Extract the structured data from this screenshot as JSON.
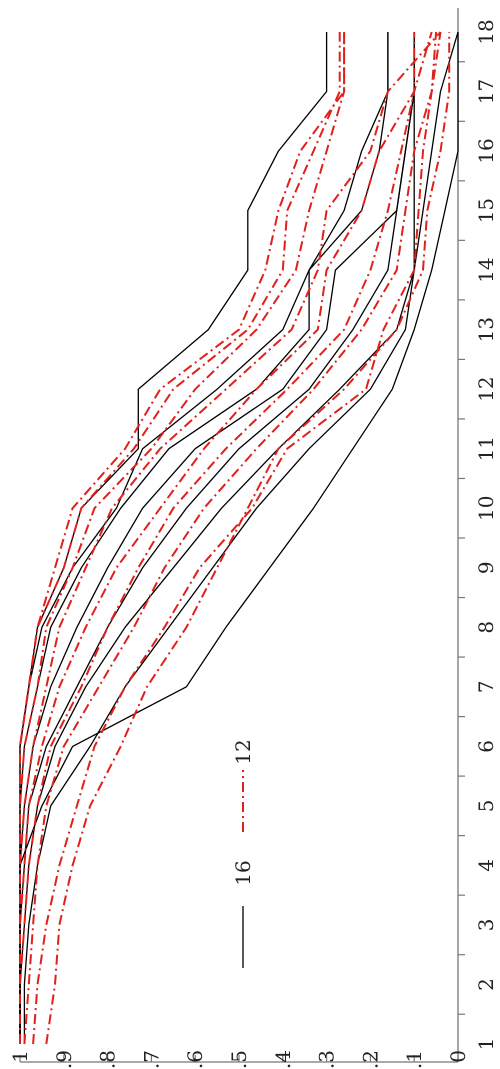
{
  "chart_data": {
    "type": "line",
    "orientation": "rotated-90-ccw",
    "x": [
      1,
      2,
      3,
      4,
      5,
      6,
      7,
      8,
      9,
      10,
      11,
      12,
      13,
      14,
      15,
      16,
      17,
      18
    ],
    "x_tick_labels": [
      "1",
      "2",
      "3",
      "4",
      "5",
      "6",
      "7",
      "8",
      "9",
      "10",
      "11",
      "12",
      "13",
      "14",
      "15",
      "16",
      "17",
      "18"
    ],
    "y_tick_labels": [
      "1",
      "0.9",
      "0.8",
      "0.7",
      "0.6",
      "0.5",
      "0.4",
      "0.3",
      "0.2",
      "0.1",
      "0"
    ],
    "ylim": [
      0,
      1
    ],
    "xlim": [
      1,
      18
    ],
    "legend": [
      {
        "label": "16",
        "style": "solid",
        "color": "#000000"
      },
      {
        "label": "12",
        "style": "dash-dot",
        "color": "#e0201b"
      }
    ],
    "series": [
      {
        "group": "16",
        "style": "solid",
        "color": "#000000",
        "values": [
          1.0,
          1.0,
          1.0,
          1.0,
          0.95,
          0.88,
          0.62,
          0.53,
          0.43,
          0.33,
          0.24,
          0.15,
          0.1,
          0.06,
          0.03,
          0.0,
          0.0,
          0.0
        ]
      },
      {
        "group": "16",
        "style": "solid",
        "color": "#000000",
        "values": [
          0.99,
          0.99,
          0.98,
          0.96,
          0.93,
          0.84,
          0.76,
          0.66,
          0.56,
          0.46,
          0.34,
          0.2,
          0.12,
          0.1,
          0.08,
          0.06,
          0.04,
          0.0
        ]
      },
      {
        "group": "16",
        "style": "solid",
        "color": "#000000",
        "values": [
          1.0,
          1.0,
          0.99,
          0.98,
          0.96,
          0.92,
          0.85,
          0.76,
          0.65,
          0.54,
          0.41,
          0.27,
          0.14,
          0.1,
          0.1,
          0.1,
          0.1,
          0.1
        ]
      },
      {
        "group": "16",
        "style": "solid",
        "color": "#000000",
        "values": [
          1.0,
          1.0,
          1.0,
          0.99,
          0.98,
          0.94,
          0.87,
          0.8,
          0.72,
          0.62,
          0.5,
          0.34,
          0.24,
          0.16,
          0.14,
          0.12,
          0.1,
          0.1
        ]
      },
      {
        "group": "16",
        "style": "solid",
        "color": "#000000",
        "values": [
          1.0,
          1.0,
          1.0,
          1.0,
          0.99,
          0.97,
          0.93,
          0.87,
          0.8,
          0.72,
          0.6,
          0.4,
          0.3,
          0.28,
          0.14,
          0.12,
          0.1,
          0.1
        ]
      },
      {
        "group": "16",
        "style": "solid",
        "color": "#000000",
        "values": [
          1.0,
          1.0,
          1.0,
          1.0,
          1.0,
          0.99,
          0.96,
          0.93,
          0.86,
          0.77,
          0.66,
          0.46,
          0.34,
          0.34,
          0.22,
          0.18,
          0.16,
          0.16
        ]
      },
      {
        "group": "16",
        "style": "solid",
        "color": "#000000",
        "values": [
          1.0,
          1.0,
          1.0,
          1.0,
          1.0,
          1.0,
          0.98,
          0.95,
          0.88,
          0.78,
          0.72,
          0.55,
          0.4,
          0.34,
          0.26,
          0.22,
          0.16,
          0.16
        ]
      },
      {
        "group": "16",
        "style": "solid",
        "color": "#000000",
        "values": [
          1.0,
          1.0,
          1.0,
          1.0,
          1.0,
          1.0,
          0.98,
          0.96,
          0.9,
          0.86,
          0.73,
          0.73,
          0.57,
          0.48,
          0.48,
          0.41,
          0.3,
          0.3
        ]
      },
      {
        "group": "12",
        "style": "dash-dot",
        "color": "#e0201b",
        "values": [
          0.94,
          0.92,
          0.91,
          0.88,
          0.84,
          0.77,
          0.71,
          0.62,
          0.55,
          0.48,
          0.41,
          0.26,
          0.14,
          0.08,
          0.07,
          0.04,
          0.02,
          0.02
        ]
      },
      {
        "group": "12",
        "style": "dash-dot",
        "color": "#e0201b",
        "values": [
          0.97,
          0.96,
          0.94,
          0.91,
          0.87,
          0.83,
          0.76,
          0.67,
          0.59,
          0.47,
          0.39,
          0.21,
          0.17,
          0.1,
          0.09,
          0.08,
          0.06,
          0.05
        ]
      },
      {
        "group": "12",
        "style": "dash-dot",
        "color": "#e0201b",
        "values": [
          0.99,
          0.98,
          0.97,
          0.96,
          0.94,
          0.9,
          0.82,
          0.74,
          0.67,
          0.58,
          0.46,
          0.33,
          0.22,
          0.14,
          0.12,
          0.1,
          0.06,
          0.04
        ]
      },
      {
        "group": "12",
        "style": "dash-dot",
        "color": "#e0201b",
        "values": [
          1.0,
          1.0,
          0.99,
          0.98,
          0.96,
          0.93,
          0.86,
          0.8,
          0.73,
          0.65,
          0.53,
          0.39,
          0.26,
          0.2,
          0.16,
          0.13,
          0.1,
          0.06
        ]
      },
      {
        "group": "12",
        "style": "dash-dot",
        "color": "#e0201b",
        "values": [
          1.0,
          1.0,
          1.0,
          0.99,
          0.98,
          0.95,
          0.91,
          0.85,
          0.78,
          0.68,
          0.58,
          0.46,
          0.32,
          0.3,
          0.22,
          0.18,
          0.1,
          0.1
        ]
      },
      {
        "group": "12",
        "style": "dash-dot",
        "color": "#e0201b",
        "values": [
          1.0,
          1.0,
          1.0,
          1.0,
          0.99,
          0.97,
          0.94,
          0.91,
          0.85,
          0.79,
          0.68,
          0.53,
          0.38,
          0.32,
          0.3,
          0.2,
          0.16,
          0.04
        ]
      },
      {
        "group": "12",
        "style": "dash-dot",
        "color": "#e0201b",
        "values": [
          1.0,
          1.0,
          1.0,
          1.0,
          1.0,
          0.99,
          0.96,
          0.94,
          0.88,
          0.83,
          0.7,
          0.6,
          0.46,
          0.37,
          0.34,
          0.3,
          0.26,
          0.26
        ]
      },
      {
        "group": "12",
        "style": "dash-dot",
        "color": "#e0201b",
        "values": [
          1.0,
          1.0,
          1.0,
          1.0,
          1.0,
          1.0,
          0.98,
          0.96,
          0.9,
          0.86,
          0.74,
          0.65,
          0.48,
          0.4,
          0.39,
          0.33,
          0.27,
          0.27
        ]
      },
      {
        "group": "12",
        "style": "dash-dot",
        "color": "#e0201b",
        "values": [
          1.0,
          1.0,
          1.0,
          1.0,
          1.0,
          1.0,
          0.98,
          0.96,
          0.92,
          0.88,
          0.76,
          0.68,
          0.5,
          0.44,
          0.41,
          0.36,
          0.26,
          0.26
        ]
      }
    ]
  }
}
